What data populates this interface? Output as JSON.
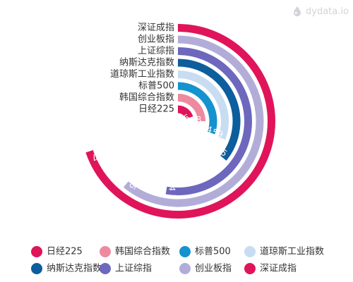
{
  "watermark": {
    "text": "dydata.io",
    "icon": "drop-icon"
  },
  "chart_data": {
    "type": "radial-bar",
    "categories": [
      "日经225",
      "韩国综合指数",
      "标普500",
      "道琼斯工业指数",
      "纳斯达克指数",
      "上证综指",
      "创业板指",
      "深证成指"
    ],
    "values": [
      7.56,
      9.38,
      11.4,
      11.59,
      13.45,
      19.74,
      22.86,
      26.17
    ],
    "value_labels": [
      "7.56",
      "9.38",
      "11.4",
      "11.59",
      "13.45",
      "19.74",
      "22.86",
      "26.17"
    ],
    "colors": [
      "#e0145a",
      "#ee8aa0",
      "#1593cf",
      "#c8dcf2",
      "#0c5e9d",
      "#6d67be",
      "#b2add8",
      "#e0145a"
    ],
    "legend_position": "bottom",
    "grid": false
  }
}
